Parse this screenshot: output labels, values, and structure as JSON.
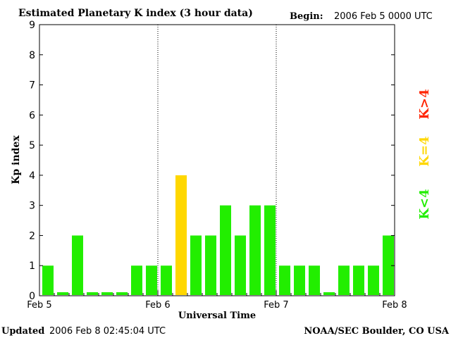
{
  "header": {
    "title": "Estimated Planetary K index (3 hour data)",
    "begin_label": "Begin:",
    "begin_value": "2006 Feb 5 0000 UTC"
  },
  "footer": {
    "updated_label": "Updated",
    "updated_value": "2006 Feb  8 02:45:04 UTC",
    "credit": "NOAA/SEC Boulder, CO USA"
  },
  "legend": [
    {
      "label": "K>4",
      "color": "#ff2400"
    },
    {
      "label": "K=4",
      "color": "#ffd700"
    },
    {
      "label": "K<4",
      "color": "#22ee00"
    }
  ],
  "chart_data": {
    "type": "bar",
    "title": "Estimated Planetary K index (3 hour data)",
    "xlabel": "Universal Time",
    "ylabel": "Kp index",
    "ylim": [
      0,
      9
    ],
    "yticks": [
      0,
      1,
      2,
      3,
      4,
      5,
      6,
      7,
      8,
      9
    ],
    "xticks": [
      "Feb 5",
      "Feb 6",
      "Feb 7",
      "Feb 8"
    ],
    "interval_hours": 3,
    "values": [
      1,
      0,
      2,
      0,
      0,
      0,
      1,
      1,
      1,
      4,
      2,
      2,
      3,
      2,
      3,
      3,
      1,
      1,
      1,
      0,
      1,
      1,
      1,
      2
    ],
    "colors": {
      "below": "#22ee00",
      "equal": "#ffd700",
      "above": "#ff2400"
    }
  }
}
